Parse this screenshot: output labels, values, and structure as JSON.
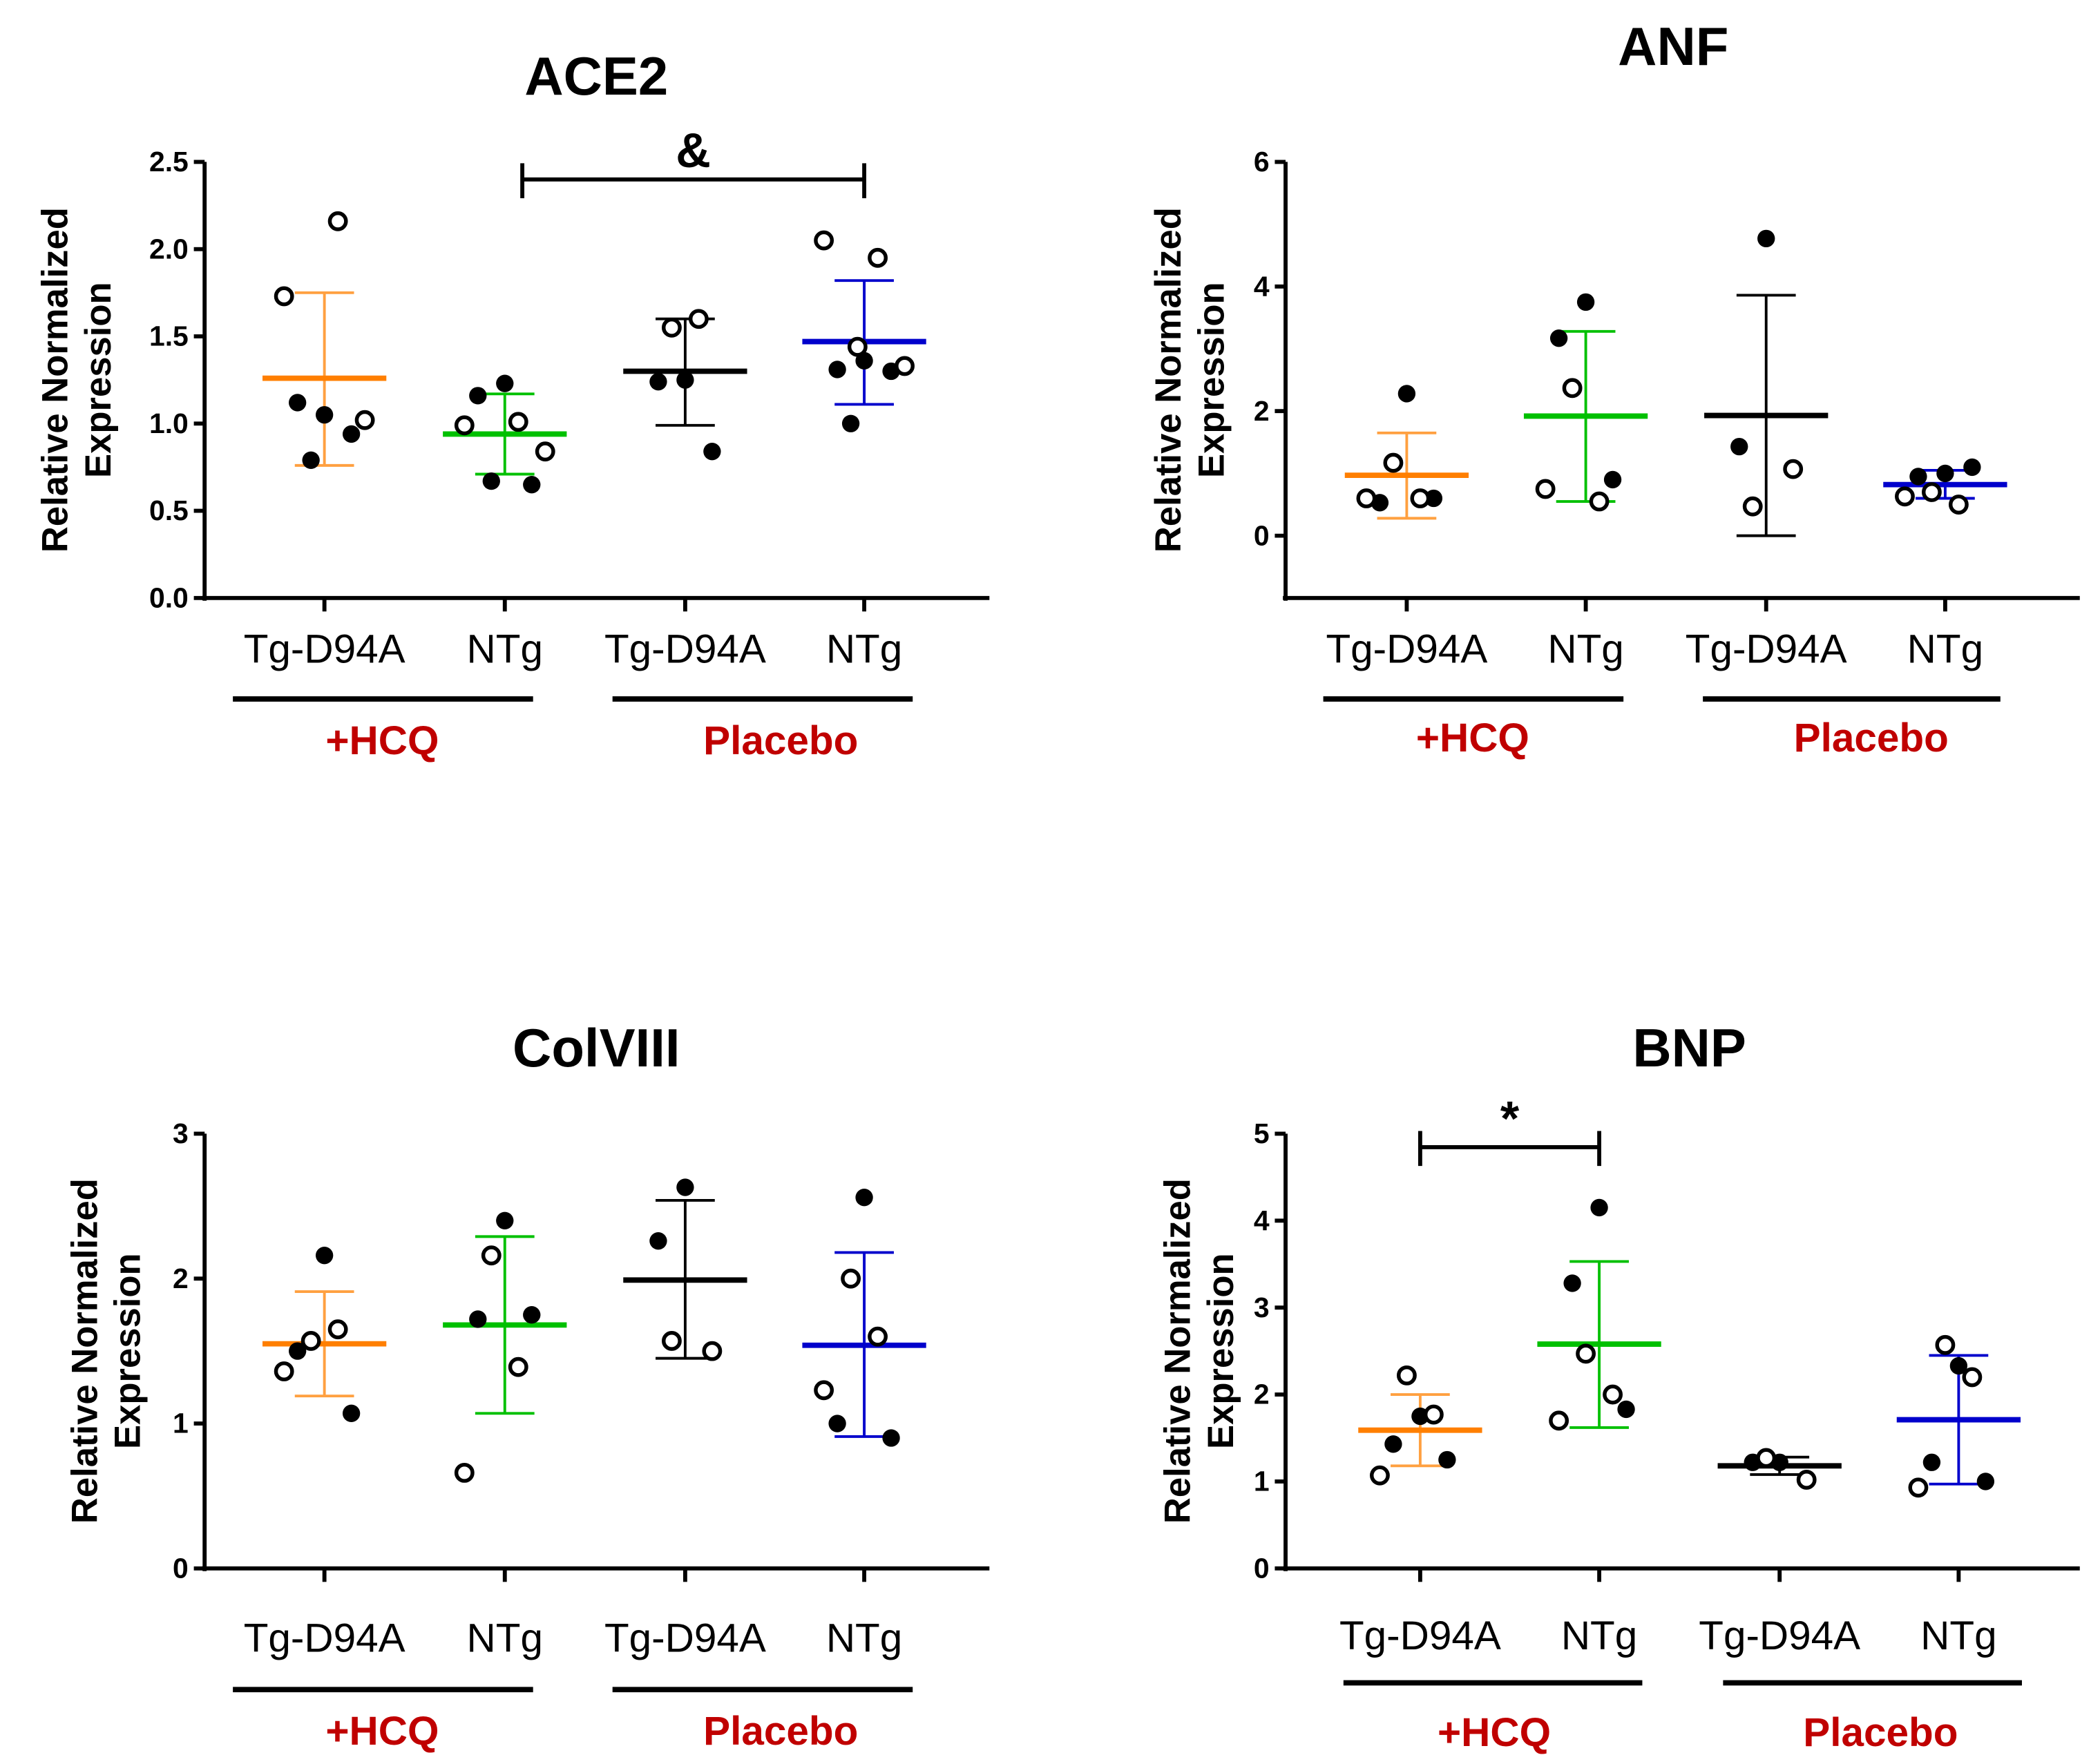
{
  "chart_data": [
    {
      "type": "scatter",
      "title": "ACE2",
      "ylabel": [
        "Relative Normalized",
        "Expression"
      ],
      "ylim": [
        0,
        2.5
      ],
      "yticks": [
        "0.0",
        "0.5",
        "1.0",
        "1.5",
        "2.0",
        "2.5"
      ],
      "ytick_values": [
        0,
        0.5,
        1.0,
        1.5,
        2.0,
        2.5
      ],
      "categories": [
        "Tg-D94A",
        "NTg",
        "Tg-D94A",
        "NTg"
      ],
      "groups": [
        {
          "label": "+HCQ",
          "span": [
            0,
            1
          ]
        },
        {
          "label": "Placebo",
          "span": [
            2,
            3
          ]
        }
      ],
      "significance": [
        {
          "from": 1,
          "to": 3,
          "label": "&"
        }
      ],
      "series": [
        {
          "name": "Tg-D94A +HCQ",
          "color": "#FF7F00",
          "mean": 1.26,
          "err": [
            0.76,
            1.75
          ],
          "filled": [
            1.05,
            1.12,
            0.94,
            0.79
          ],
          "open": [
            2.16,
            1.73,
            1.02
          ]
        },
        {
          "name": "NTg +HCQ",
          "color": "#00C000",
          "mean": 0.94,
          "err": [
            0.71,
            1.17
          ],
          "filled": [
            1.23,
            1.16,
            0.65,
            0.67
          ],
          "open": [
            1.01,
            0.99,
            0.84
          ]
        },
        {
          "name": "Tg-D94A Placebo",
          "color": "#000000",
          "mean": 1.3,
          "err": [
            0.99,
            1.6
          ],
          "filled": [
            1.25,
            1.24,
            0.84
          ],
          "open": [
            1.55,
            1.6
          ]
        },
        {
          "name": "NTg Placebo",
          "color": "#0000CC",
          "mean": 1.47,
          "err": [
            1.11,
            1.82
          ],
          "filled": [
            1.36,
            1.31,
            1.3,
            1.0
          ],
          "open": [
            1.95,
            2.05,
            1.33,
            1.44
          ]
        }
      ]
    },
    {
      "type": "scatter",
      "title": "ANF",
      "ylabel": [
        "Relative Normalized",
        "Expression"
      ],
      "ylim": [
        -1,
        6
      ],
      "yticks": [
        "0",
        "2",
        "4",
        "6"
      ],
      "ytick_values": [
        0,
        2,
        4,
        6
      ],
      "categories": [
        "Tg-D94A",
        "NTg",
        "Tg-D94A",
        "NTg"
      ],
      "groups": [
        {
          "label": "+HCQ",
          "span": [
            0,
            1
          ]
        },
        {
          "label": "Placebo",
          "span": [
            2,
            3
          ]
        }
      ],
      "significance": [],
      "series": [
        {
          "name": "Tg-D94A +HCQ",
          "color": "#FF7F00",
          "mean": 0.97,
          "err": [
            0.28,
            1.65
          ],
          "filled": [
            2.28,
            0.53,
            0.6
          ],
          "open": [
            1.17,
            0.6,
            0.6
          ]
        },
        {
          "name": "NTg +HCQ",
          "color": "#00C000",
          "mean": 1.92,
          "err": [
            0.55,
            3.28
          ],
          "filled": [
            3.75,
            3.17,
            0.9
          ],
          "open": [
            2.37,
            0.55,
            0.75
          ]
        },
        {
          "name": "Tg-D94A Placebo",
          "color": "#000000",
          "mean": 1.93,
          "err": [
            0.0,
            3.86
          ],
          "filled": [
            4.77,
            1.43
          ],
          "open": [
            1.07,
            0.47
          ]
        },
        {
          "name": "NTg Placebo",
          "color": "#0000CC",
          "mean": 0.82,
          "err": [
            0.6,
            1.05
          ],
          "filled": [
            1.0,
            0.95,
            1.1
          ],
          "open": [
            0.7,
            0.5,
            0.63
          ]
        }
      ]
    },
    {
      "type": "scatter",
      "title": "ColVIII",
      "ylabel": [
        "Relative Normalized",
        "Expression"
      ],
      "ylim": [
        0,
        3
      ],
      "yticks": [
        "0",
        "1",
        "2",
        "3"
      ],
      "ytick_values": [
        0,
        1,
        2,
        3
      ],
      "categories": [
        "Tg-D94A",
        "NTg",
        "Tg-D94A",
        "NTg"
      ],
      "groups": [
        {
          "label": "+HCQ",
          "span": [
            0,
            1
          ]
        },
        {
          "label": "Placebo",
          "span": [
            2,
            3
          ]
        }
      ],
      "significance": [],
      "series": [
        {
          "name": "Tg-D94A +HCQ",
          "color": "#FF7F00",
          "mean": 1.55,
          "err": [
            1.19,
            1.91
          ],
          "filled": [
            2.16,
            1.5,
            1.07
          ],
          "open": [
            1.57,
            1.65,
            1.36
          ]
        },
        {
          "name": "NTg +HCQ",
          "color": "#00C000",
          "mean": 1.68,
          "err": [
            1.07,
            2.29
          ],
          "filled": [
            2.4,
            1.72,
            1.75
          ],
          "open": [
            2.16,
            1.39,
            0.66
          ]
        },
        {
          "name": "Tg-D94A Placebo",
          "color": "#000000",
          "mean": 1.99,
          "err": [
            1.45,
            2.54
          ],
          "filled": [
            2.63,
            2.26
          ],
          "open": [
            1.5,
            1.57
          ]
        },
        {
          "name": "NTg Placebo",
          "color": "#0000CC",
          "mean": 1.54,
          "err": [
            0.91,
            2.18
          ],
          "filled": [
            2.56,
            1.0,
            0.9
          ],
          "open": [
            2.0,
            1.6,
            1.23
          ]
        }
      ]
    },
    {
      "type": "scatter",
      "title": "BNP",
      "ylabel": [
        "Relative Normalized",
        "Expression"
      ],
      "ylim": [
        0,
        5
      ],
      "yticks": [
        "0",
        "1",
        "2",
        "3",
        "4",
        "5"
      ],
      "ytick_values": [
        0,
        1,
        2,
        3,
        4,
        5
      ],
      "categories": [
        "Tg-D94A",
        "NTg",
        "Tg-D94A",
        "NTg"
      ],
      "groups": [
        {
          "label": "+HCQ",
          "span": [
            0,
            1
          ]
        },
        {
          "label": "Placebo",
          "span": [
            2,
            3
          ]
        }
      ],
      "significance": [
        {
          "from": 0,
          "to": 1,
          "label": "*"
        }
      ],
      "series": [
        {
          "name": "Tg-D94A +HCQ",
          "color": "#FF7F00",
          "mean": 1.59,
          "err": [
            1.18,
            2.0
          ],
          "filled": [
            1.75,
            1.43,
            1.25
          ],
          "open": [
            2.22,
            1.77,
            1.07
          ]
        },
        {
          "name": "NTg +HCQ",
          "color": "#00C000",
          "mean": 2.58,
          "err": [
            1.62,
            3.53
          ],
          "filled": [
            4.15,
            3.28,
            1.83
          ],
          "open": [
            2.47,
            2.0,
            1.7
          ]
        },
        {
          "name": "Tg-D94A Placebo",
          "color": "#000000",
          "mean": 1.18,
          "err": [
            1.08,
            1.28
          ],
          "filled": [
            1.22,
            1.22
          ],
          "open": [
            1.02,
            1.27
          ]
        },
        {
          "name": "NTg Placebo",
          "color": "#0000CC",
          "mean": 1.71,
          "err": [
            0.97,
            2.45
          ],
          "filled": [
            2.33,
            1.22,
            1.0
          ],
          "open": [
            2.57,
            2.2,
            0.93
          ]
        }
      ]
    }
  ]
}
